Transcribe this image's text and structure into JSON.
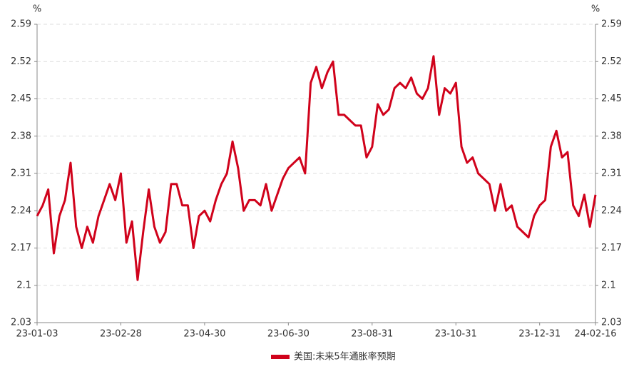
{
  "chart_data": {
    "type": "line",
    "y_unit": "%",
    "y2_unit": "%",
    "categories": [
      "23-01-03",
      null,
      null,
      null,
      null,
      null,
      null,
      null,
      null,
      null,
      null,
      null,
      null,
      null,
      null,
      "23-02-28",
      null,
      null,
      null,
      null,
      null,
      null,
      null,
      null,
      null,
      null,
      null,
      null,
      null,
      null,
      "23-04-30",
      null,
      null,
      null,
      null,
      null,
      null,
      null,
      null,
      null,
      null,
      null,
      null,
      null,
      null,
      "23-06-30",
      null,
      null,
      null,
      null,
      null,
      null,
      null,
      null,
      null,
      null,
      null,
      null,
      null,
      null,
      "23-08-31",
      null,
      null,
      null,
      null,
      null,
      null,
      null,
      null,
      null,
      null,
      null,
      null,
      null,
      null,
      "23-10-31",
      null,
      null,
      null,
      null,
      null,
      null,
      null,
      null,
      null,
      null,
      null,
      null,
      null,
      null,
      "23-12-31",
      null,
      null,
      null,
      null,
      null,
      null,
      null,
      null,
      null,
      "24-02-16"
    ],
    "series": [
      {
        "name": "美国:未来5年通胀率预期",
        "color": "#d0021b",
        "values": [
          2.23,
          2.25,
          2.28,
          2.16,
          2.23,
          2.26,
          2.33,
          2.21,
          2.17,
          2.21,
          2.18,
          2.23,
          2.26,
          2.29,
          2.26,
          2.31,
          2.18,
          2.22,
          2.11,
          2.2,
          2.28,
          2.21,
          2.18,
          2.2,
          2.29,
          2.29,
          2.25,
          2.25,
          2.17,
          2.23,
          2.24,
          2.22,
          2.26,
          2.29,
          2.31,
          2.37,
          2.32,
          2.24,
          2.26,
          2.26,
          2.25,
          2.29,
          2.24,
          2.27,
          2.3,
          2.32,
          2.33,
          2.34,
          2.31,
          2.48,
          2.51,
          2.47,
          2.5,
          2.52,
          2.42,
          2.42,
          2.41,
          2.4,
          2.4,
          2.34,
          2.36,
          2.44,
          2.42,
          2.43,
          2.47,
          2.48,
          2.47,
          2.49,
          2.46,
          2.45,
          2.47,
          2.53,
          2.42,
          2.47,
          2.46,
          2.48,
          2.36,
          2.33,
          2.34,
          2.31,
          2.3,
          2.29,
          2.24,
          2.29,
          2.24,
          2.25,
          2.21,
          2.2,
          2.19,
          2.23,
          2.25,
          2.26,
          2.36,
          2.39,
          2.34,
          2.35,
          2.25,
          2.23,
          2.27,
          2.21,
          2.27
        ]
      }
    ],
    "ylim": [
      2.03,
      2.59
    ],
    "yticks": [
      2.03,
      2.1,
      2.17,
      2.24,
      2.31,
      2.38,
      2.45,
      2.52,
      2.59
    ],
    "y2lim": [
      2.03,
      2.59
    ],
    "y2ticks": [
      2.03,
      2.1,
      2.17,
      2.24,
      2.31,
      2.38,
      2.45,
      2.52,
      2.59
    ],
    "grid": true,
    "legend": "bottom"
  }
}
